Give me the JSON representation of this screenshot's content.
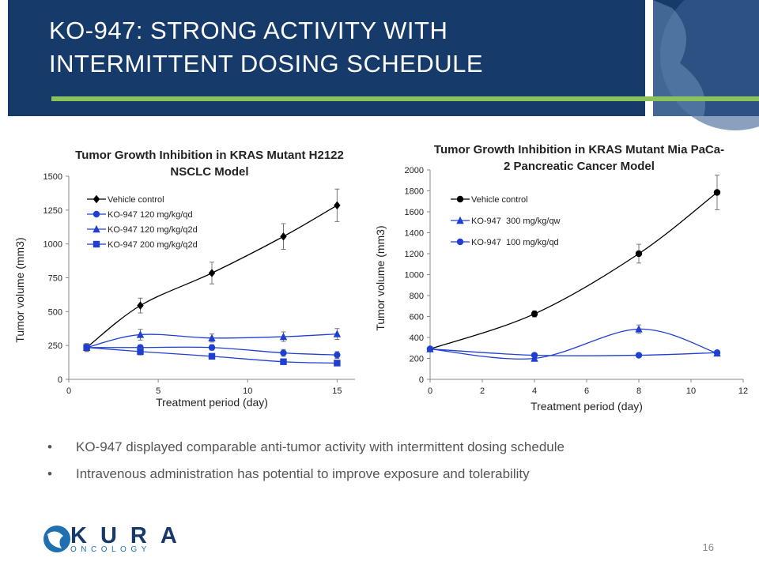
{
  "header": {
    "title": "KO-947: STRONG ACTIVITY WITH INTERMITTENT DOSING SCHEDULE"
  },
  "chart_data": [
    {
      "type": "line",
      "smooth": true,
      "title": "Tumor Growth Inhibition in KRAS Mutant H2122 NSCLC Model",
      "x_label": "Treatment period (day)",
      "y_label": "Tumor volume (mm3)",
      "x": [
        1,
        4,
        8,
        12,
        15
      ],
      "xlim": [
        0,
        16
      ],
      "xticks": [
        0,
        5,
        10,
        15
      ],
      "ylim": [
        0,
        1500
      ],
      "yticks": [
        0,
        250,
        500,
        750,
        1000,
        1250,
        1500
      ],
      "legend": "top-left",
      "series": [
        {
          "name": "Vehicle control",
          "color": "#000000",
          "marker": "diamond",
          "values": [
            235,
            545,
            785,
            1055,
            1285
          ],
          "errors": [
            30,
            55,
            80,
            95,
            120
          ]
        },
        {
          "name": "KO-947 120 mg/kg/qd",
          "color": "#1f3fd0",
          "marker": "circle",
          "values": [
            235,
            235,
            235,
            195,
            180
          ],
          "errors": [
            25,
            20,
            20,
            25,
            25
          ]
        },
        {
          "name": "KO-947 120 mg/kg/q2d",
          "color": "#1f3fd0",
          "marker": "triangle",
          "values": [
            235,
            330,
            305,
            315,
            335
          ],
          "errors": [
            25,
            40,
            30,
            35,
            40
          ]
        },
        {
          "name": "KO-947 200 mg/kg/q2d",
          "color": "#1f3fd0",
          "marker": "square",
          "values": [
            235,
            205,
            170,
            130,
            120
          ],
          "errors": [
            20,
            25,
            15,
            15,
            15
          ]
        }
      ]
    },
    {
      "type": "line",
      "smooth": true,
      "title": "Tumor Growth Inhibition in KRAS Mutant Mia PaCa-2 Pancreatic Cancer Model",
      "x_label": "Treatment period (day)",
      "y_label": "Tumor volume (mm3)",
      "x": [
        0,
        4,
        8,
        11
      ],
      "xlim": [
        0,
        12
      ],
      "xticks": [
        0,
        2,
        4,
        6,
        8,
        10,
        12
      ],
      "ylim": [
        0,
        2000
      ],
      "yticks": [
        0,
        200,
        400,
        600,
        800,
        1000,
        1200,
        1400,
        1600,
        1800,
        2000
      ],
      "legend": "top-left",
      "series": [
        {
          "name": "Vehicle control",
          "color": "#000000",
          "marker": "circle",
          "values": [
            290,
            625,
            1200,
            1785
          ],
          "errors": [
            15,
            30,
            90,
            165
          ]
        },
        {
          "name": "KO-947  300 mg/kg/qw",
          "color": "#1f3fd0",
          "marker": "triangle",
          "values": [
            290,
            200,
            480,
            250
          ],
          "errors": [
            10,
            10,
            40,
            15
          ]
        },
        {
          "name": "KO-947  100 mg/kg/qd",
          "color": "#1f3fd0",
          "marker": "circle",
          "values": [
            290,
            230,
            230,
            255
          ],
          "errors": [
            10,
            10,
            10,
            10
          ]
        }
      ]
    }
  ],
  "bullets": [
    "KO-947 displayed comparable anti-tumor activity with intermittent dosing schedule",
    "Intravenous administration has potential to improve exposure and tolerability"
  ],
  "logo": {
    "name": "KURA",
    "tagline": "ONCOLOGY"
  },
  "page_number": "16"
}
